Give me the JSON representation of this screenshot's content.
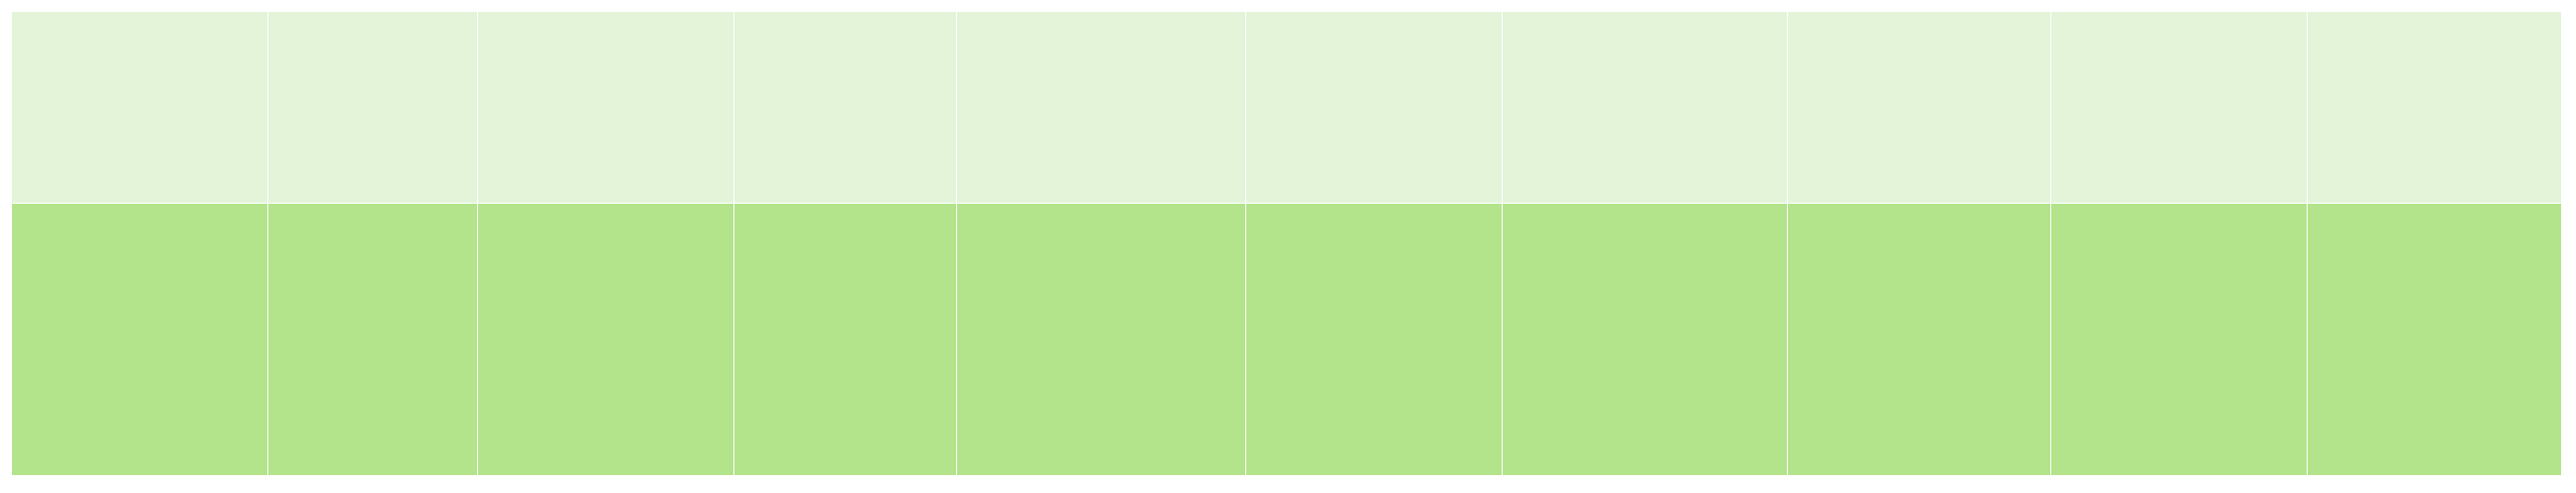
{
  "palette": {
    "light_fill": "#e3f4d8",
    "dark_fill": "#b3e38b",
    "divider": "#ffffff"
  },
  "tiles": {
    "rows": 2,
    "columns": 10
  }
}
